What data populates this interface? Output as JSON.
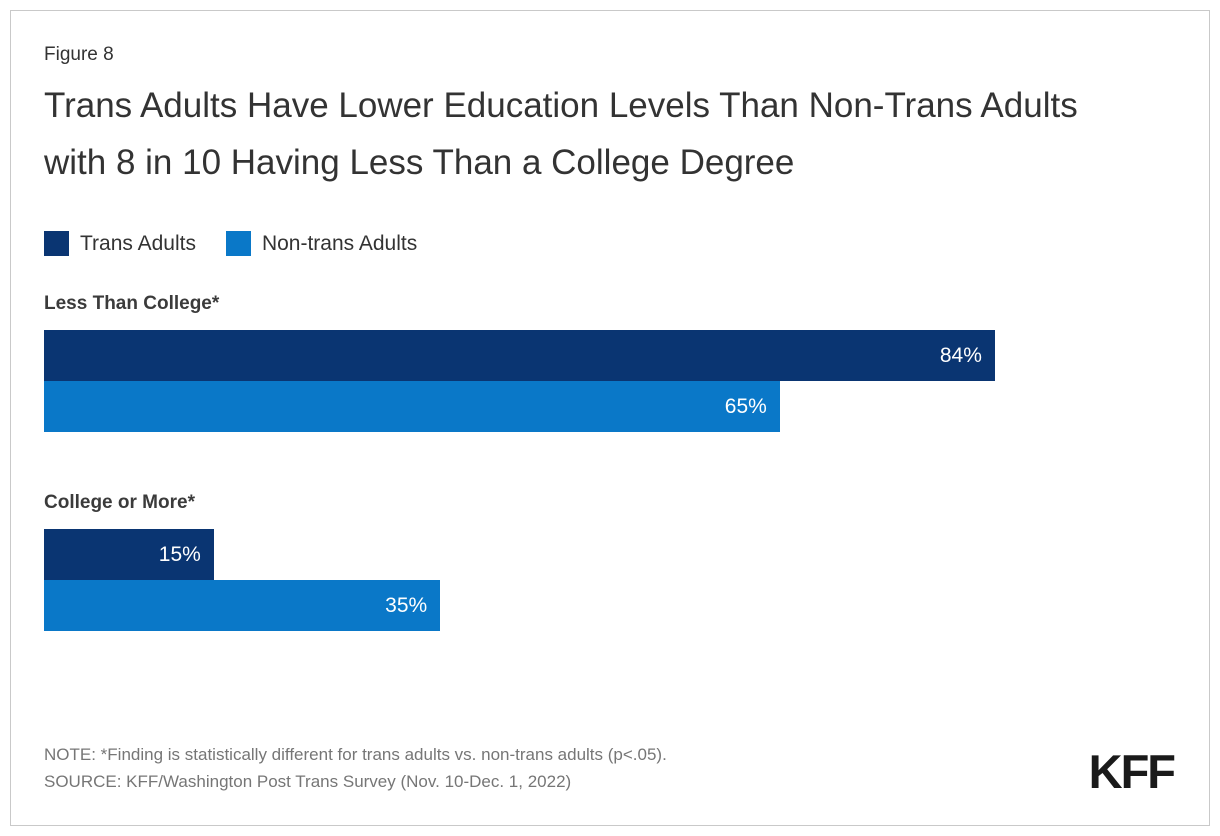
{
  "figure_label": "Figure 8",
  "title": "Trans Adults Have Lower Education Levels Than Non-Trans Adults with 8 in 10 Having Less Than a College Degree",
  "legend": {
    "items": [
      {
        "label": "Trans Adults",
        "color": "#0a3572"
      },
      {
        "label": "Non-trans Adults",
        "color": "#0a78c8"
      }
    ]
  },
  "chart_data": {
    "type": "bar",
    "orientation": "horizontal",
    "categories": [
      "Less Than College*",
      "College or More*"
    ],
    "series": [
      {
        "name": "Trans Adults",
        "color": "#0a3572",
        "values": [
          84,
          15
        ],
        "labels": [
          "84%",
          "15%"
        ]
      },
      {
        "name": "Non-trans Adults",
        "color": "#0a78c8",
        "values": [
          65,
          35
        ],
        "labels": [
          "65%",
          "35%"
        ]
      }
    ],
    "value_suffix": "%",
    "xlim": [
      0,
      100
    ],
    "grid": false,
    "legend_position": "top-left",
    "data_labels": "inside-end"
  },
  "note": "NOTE: *Finding is statistically different for trans adults vs. non-trans adults (p<.05).",
  "source": "SOURCE: KFF/Washington Post Trans Survey (Nov. 10-Dec. 1, 2022)",
  "logo_text": "KFF",
  "colors": {
    "title_text": "#333333",
    "category_text": "#3b3b3b",
    "note_text": "#767676",
    "bar_value_text": "#ffffff",
    "card_border": "#c9c9c9",
    "background": "#ffffff",
    "logo": "#1a1a1a"
  }
}
